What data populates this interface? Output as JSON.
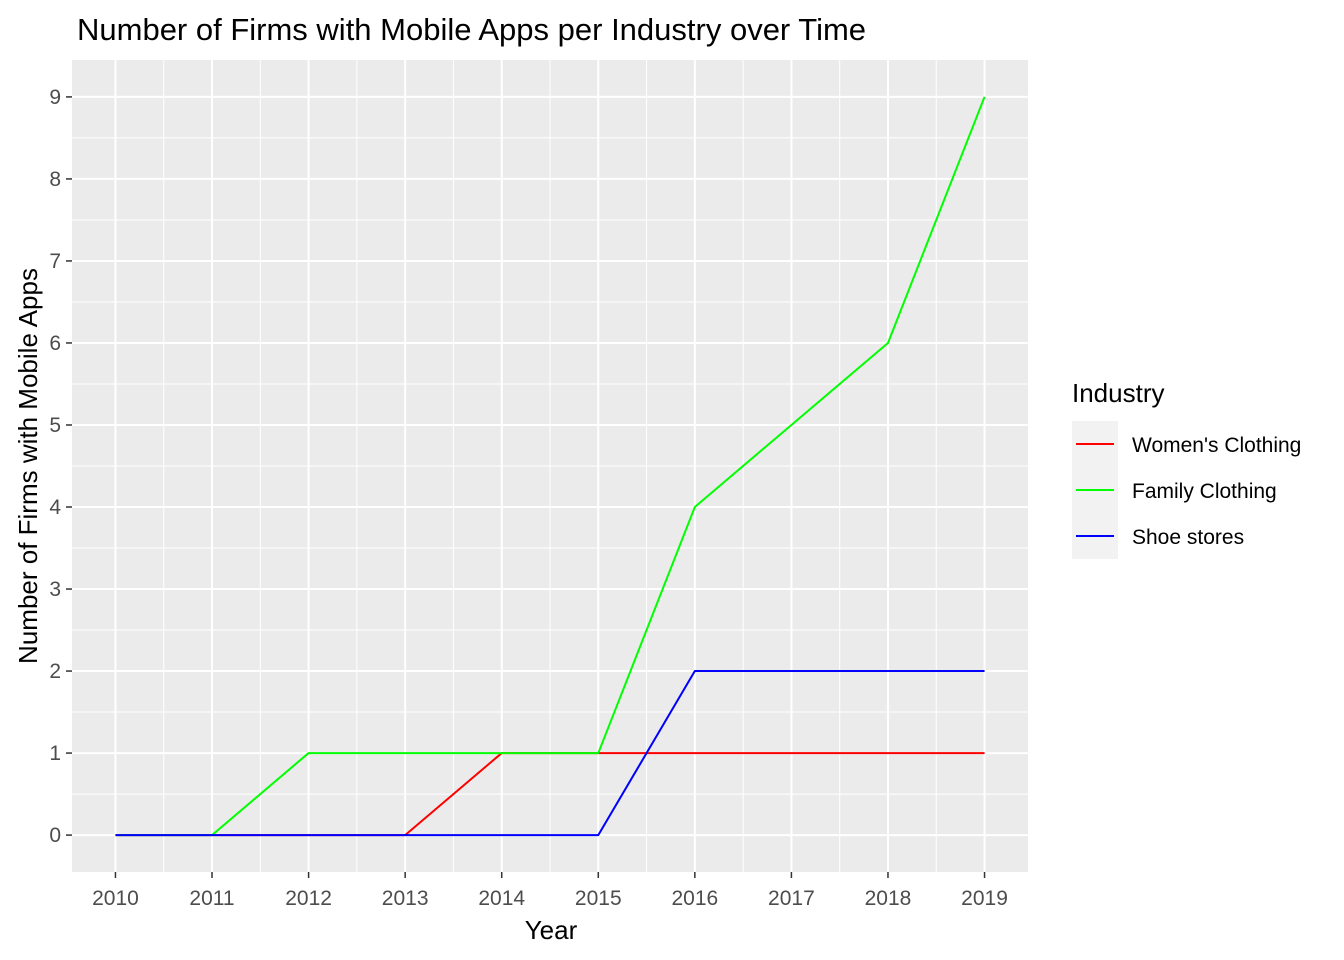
{
  "chart_data": {
    "type": "line",
    "title": "Number of Firms with Mobile Apps per Industry over Time",
    "xlabel": "Year",
    "ylabel": "Number of Firms with Mobile Apps",
    "x": [
      "2010",
      "2011",
      "2012",
      "2013",
      "2014",
      "2015",
      "2016",
      "2017",
      "2018",
      "2019"
    ],
    "xlim": [
      2009.55,
      2019.45
    ],
    "ylim": [
      -0.45,
      9.45
    ],
    "yticks": [
      "0",
      "1",
      "2",
      "3",
      "4",
      "5",
      "6",
      "7",
      "8",
      "9"
    ],
    "grid": true,
    "panel_background": "#ebebeb",
    "legend": {
      "title": "Industry",
      "position": "right"
    },
    "series": [
      {
        "name": "Women's Clothing",
        "color": "#ff0000",
        "values": [
          0,
          0,
          0,
          0,
          1,
          1,
          1,
          1,
          1,
          1
        ]
      },
      {
        "name": "Family Clothing",
        "color": "#00ff00",
        "values": [
          0,
          0,
          1,
          1,
          1,
          1,
          4,
          5,
          6,
          9
        ]
      },
      {
        "name": "Shoe stores",
        "color": "#0000ff",
        "values": [
          0,
          0,
          0,
          0,
          0,
          0,
          2,
          2,
          2,
          2
        ]
      }
    ]
  }
}
